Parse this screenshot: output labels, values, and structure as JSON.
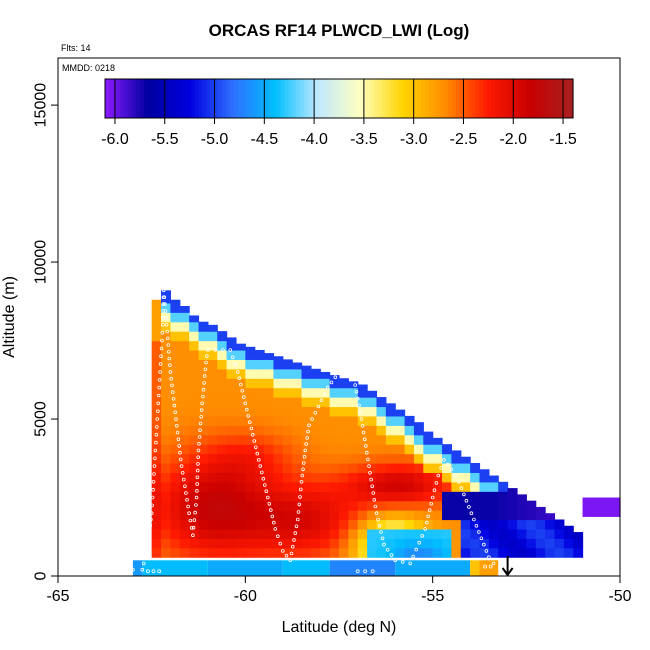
{
  "chart_data": {
    "type": "heatmap",
    "title": "ORCAS RF14 PLWCD_LWI (Log)",
    "annotations": {
      "flights": "Flts: 14",
      "date": "MMDD: 0218"
    },
    "xlabel": "Latitude (deg N)",
    "ylabel": "Altitude (m)",
    "xlim": [
      -65,
      -50
    ],
    "ylim": [
      0,
      16500
    ],
    "x_ticks": [
      -65,
      -60,
      -55,
      -50
    ],
    "y_ticks": [
      0,
      5000,
      10000,
      15000
    ],
    "colorbar": {
      "ticks": [
        -6.0,
        -5.5,
        -5.0,
        -4.5,
        -4.0,
        -3.5,
        -3.0,
        -2.5,
        -2.0,
        -1.5
      ],
      "tick_labels": [
        "-6.0",
        "-5.5",
        "-5.0",
        "-4.5",
        "-4.0",
        "-3.5",
        "-3.0",
        "-2.5",
        "-2.0",
        "-1.5"
      ],
      "range": [
        -6.1,
        -1.4
      ],
      "colors": [
        "#8c1aff",
        "#0000a0",
        "#0000e0",
        "#2f6fff",
        "#00bfff",
        "#bfe8ff",
        "#ffffc0",
        "#ffd500",
        "#ff8c00",
        "#ff1a00",
        "#c80000",
        "#a82020"
      ]
    },
    "cell_size": {
      "lat": 0.25,
      "alt": 300
    },
    "columns": [
      {
        "lat": -62.5,
        "top": 8800
      },
      {
        "lat": -62.25,
        "top": 9100
      },
      {
        "lat": -62.0,
        "top": 8800
      },
      {
        "lat": -61.75,
        "top": 8600
      },
      {
        "lat": -61.5,
        "top": 8300
      },
      {
        "lat": -61.25,
        "top": 8100
      },
      {
        "lat": -61.0,
        "top": 8000
      },
      {
        "lat": -60.75,
        "top": 7800
      },
      {
        "lat": -60.5,
        "top": 7600
      },
      {
        "lat": -60.25,
        "top": 7400
      },
      {
        "lat": -60.0,
        "top": 7300
      },
      {
        "lat": -59.75,
        "top": 7200
      },
      {
        "lat": -59.5,
        "top": 7100
      },
      {
        "lat": -59.25,
        "top": 7000
      },
      {
        "lat": -59.0,
        "top": 6900
      },
      {
        "lat": -58.75,
        "top": 6800
      },
      {
        "lat": -58.5,
        "top": 6700
      },
      {
        "lat": -58.25,
        "top": 6600
      },
      {
        "lat": -58.0,
        "top": 6500
      },
      {
        "lat": -57.75,
        "top": 6400
      },
      {
        "lat": -57.5,
        "top": 6300
      },
      {
        "lat": -57.25,
        "top": 6200
      },
      {
        "lat": -57.0,
        "top": 6100
      },
      {
        "lat": -56.75,
        "top": 5900
      },
      {
        "lat": -56.5,
        "top": 5700
      },
      {
        "lat": -56.25,
        "top": 5500
      },
      {
        "lat": -56.0,
        "top": 5300
      },
      {
        "lat": -55.75,
        "top": 5100
      },
      {
        "lat": -55.5,
        "top": 4900
      },
      {
        "lat": -55.25,
        "top": 4600
      },
      {
        "lat": -55.0,
        "top": 4400
      },
      {
        "lat": -54.75,
        "top": 4200
      },
      {
        "lat": -54.5,
        "top": 4000
      },
      {
        "lat": -54.25,
        "top": 3800
      },
      {
        "lat": -54.0,
        "top": 3600
      },
      {
        "lat": -53.75,
        "top": 3400
      },
      {
        "lat": -53.5,
        "top": 3200
      },
      {
        "lat": -53.25,
        "top": 3000
      },
      {
        "lat": -53.0,
        "top": 2800
      },
      {
        "lat": -52.75,
        "top": 2600
      },
      {
        "lat": -52.5,
        "top": 2400
      },
      {
        "lat": -52.25,
        "top": 2200
      },
      {
        "lat": -52.0,
        "top": 2000
      },
      {
        "lat": -51.75,
        "top": 1800
      },
      {
        "lat": -51.5,
        "top": 1600
      },
      {
        "lat": -51.25,
        "top": 1400
      }
    ],
    "low_level_band": {
      "lat_range": [
        -63.0,
        -53.25
      ],
      "alt_range": [
        0,
        500
      ],
      "segments": [
        {
          "lat_range": [
            -63.0,
            -62.75
          ],
          "value": -4.6
        },
        {
          "lat_range": [
            -62.75,
            -61.0
          ],
          "value": -4.4
        },
        {
          "lat_range": [
            -61.0,
            -59.0
          ],
          "value": -4.5
        },
        {
          "lat_range": [
            -59.0,
            -57.75
          ],
          "value": -4.4
        },
        {
          "lat_range": [
            -57.75,
            -56.0
          ],
          "value": -4.7
        },
        {
          "lat_range": [
            -56.0,
            -54.0
          ],
          "value": -4.5
        },
        {
          "lat_range": [
            -54.0,
            -53.75
          ],
          "value": -3.0
        },
        {
          "lat_range": [
            -53.75,
            -53.25
          ],
          "value": -2.8
        }
      ]
    },
    "extended_layer": {
      "lat_range": [
        -54.75,
        -50.0
      ],
      "alt_range": [
        1900,
        2800
      ],
      "value": -5.7
    },
    "flight_track": [
      [
        -63.0,
        200
      ],
      [
        -62.75,
        200
      ],
      [
        -62.6,
        1000
      ],
      [
        -62.5,
        2000
      ],
      [
        -62.45,
        3000
      ],
      [
        -62.4,
        4000
      ],
      [
        -62.35,
        5000
      ],
      [
        -62.3,
        6000
      ],
      [
        -62.25,
        7000
      ],
      [
        -62.2,
        8000
      ],
      [
        -62.18,
        9100
      ],
      [
        -62.1,
        8000
      ],
      [
        -62.0,
        6500
      ],
      [
        -61.85,
        5000
      ],
      [
        -61.7,
        3500
      ],
      [
        -61.5,
        2000
      ],
      [
        -61.4,
        1300
      ],
      [
        -61.3,
        2500
      ],
      [
        -61.25,
        4000
      ],
      [
        -61.15,
        5500
      ],
      [
        -61.05,
        6800
      ],
      [
        -61.0,
        7200
      ],
      [
        -60.8,
        7200
      ],
      [
        -60.6,
        7200
      ],
      [
        -60.4,
        7200
      ],
      [
        -60.2,
        6500
      ],
      [
        -60.0,
        5500
      ],
      [
        -59.8,
        4500
      ],
      [
        -59.6,
        3500
      ],
      [
        -59.4,
        2500
      ],
      [
        -59.2,
        1500
      ],
      [
        -59.0,
        800
      ],
      [
        -58.8,
        500
      ],
      [
        -58.6,
        1800
      ],
      [
        -58.5,
        3000
      ],
      [
        -58.4,
        4000
      ],
      [
        -58.3,
        4800
      ],
      [
        -57.8,
        6000
      ],
      [
        -57.5,
        6500
      ],
      [
        -57.3,
        7000
      ],
      [
        -57.1,
        6300
      ],
      [
        -56.9,
        5000
      ],
      [
        -56.7,
        3500
      ],
      [
        -56.5,
        2000
      ],
      [
        -56.3,
        1000
      ],
      [
        -56.0,
        500
      ],
      [
        -55.6,
        400
      ],
      [
        -55.2,
        1500
      ],
      [
        -55.0,
        2500
      ],
      [
        -54.85,
        3200
      ],
      [
        -54.7,
        3700
      ],
      [
        -54.5,
        3400
      ],
      [
        -54.3,
        3000
      ],
      [
        -54.1,
        2400
      ],
      [
        -53.9,
        1800
      ],
      [
        -53.7,
        1200
      ],
      [
        -53.5,
        600
      ],
      [
        -53.25,
        200
      ]
    ],
    "track_label_points": [
      [
        -62.6,
        150
      ],
      [
        -62.45,
        150
      ],
      [
        -62.3,
        150
      ],
      [
        -57.0,
        150
      ],
      [
        -56.8,
        150
      ],
      [
        -56.6,
        150
      ],
      [
        -53.6,
        300
      ],
      [
        -53.45,
        300
      ]
    ],
    "end_marker": {
      "lat": -53.0,
      "alt": 0,
      "symbol": "arrow-down"
    }
  }
}
